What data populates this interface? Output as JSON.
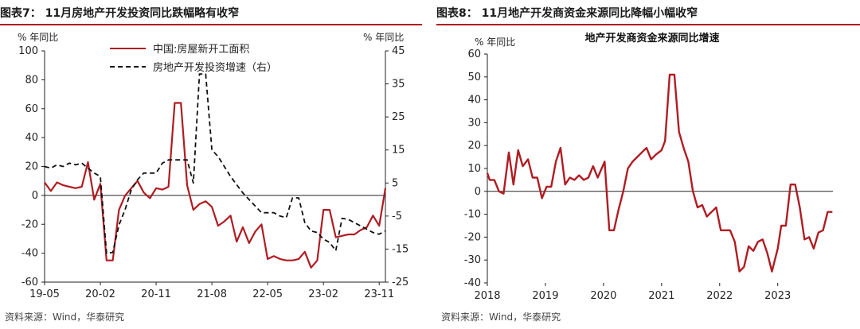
{
  "colors": {
    "red": "#b01c22",
    "black": "#111111"
  },
  "left_panel": {
    "header": "图表7： 11月房地产开发投资同比跌幅略有收窄",
    "unit_left": "% 年同比",
    "unit_right": "% 年同比",
    "source": "资料来源：Wind，华泰研究"
  },
  "right_panel": {
    "header": "图表8： 11月地产开发商资金来源同比降幅小幅收窄",
    "unit_left": "% 年同比",
    "source": "资料来源：Wind，华泰研究"
  },
  "chart_data": [
    {
      "type": "line",
      "title": "",
      "xlabel": "",
      "ylabel_left": "% 年同比",
      "ylabel_right": "% 年同比",
      "x_tick_labels": [
        "19-05",
        "20-02",
        "20-11",
        "21-08",
        "22-05",
        "23-02",
        "23-11"
      ],
      "x_tick_index": [
        0,
        9,
        18,
        27,
        36,
        45,
        54
      ],
      "ylim_left": [
        -60,
        100
      ],
      "yticks_left": [
        -60,
        -40,
        -20,
        0,
        20,
        40,
        60,
        80,
        100
      ],
      "ylim_right": [
        -25,
        45
      ],
      "yticks_right": [
        -25,
        -15,
        -5,
        5,
        15,
        25,
        35,
        45
      ],
      "legend_position": "top-center",
      "series": [
        {
          "name": "中国:房屋新开工面积",
          "axis": "left",
          "style": "solid",
          "color": "#b01c22",
          "values": [
            9,
            3,
            9,
            7,
            6,
            5,
            6,
            23,
            -3,
            8,
            -45,
            -45,
            -10,
            0,
            5,
            10,
            2,
            -2,
            5,
            4,
            6,
            64,
            64,
            7,
            -10,
            -6,
            -4,
            -8,
            -21,
            -18,
            -14,
            -32,
            -22,
            -33,
            -25,
            -20,
            -44,
            -42,
            -44,
            -45,
            -45,
            -44,
            -39,
            -50,
            -45,
            -10,
            -10,
            -29,
            -28,
            -27,
            -27,
            -24,
            -22,
            -14,
            -21,
            5
          ]
        },
        {
          "name": "房地产开发投资增速（右）",
          "axis": "right",
          "style": "dashed",
          "color": "#111111",
          "values": [
            10,
            9.5,
            10.5,
            10,
            11,
            10.5,
            11,
            9.5,
            8,
            7,
            -16.3,
            -16,
            -7.7,
            -3,
            3,
            6,
            8,
            8,
            8,
            11,
            12,
            12,
            12,
            12,
            5,
            38,
            38,
            15,
            13,
            10,
            7,
            4.5,
            2,
            0,
            -2,
            -4,
            -4,
            -4,
            -5,
            -5.5,
            0.5,
            0.5,
            -7,
            -9.5,
            -10,
            -12,
            -13,
            -15.5,
            -5.7,
            -6,
            -7,
            -8,
            -9,
            -10,
            -10.5,
            -9.5
          ]
        }
      ]
    },
    {
      "type": "line",
      "title": "地产开发商资金来源同比增速",
      "xlabel": "",
      "ylabel": "% 年同比",
      "x_tick_labels": [
        "2018",
        "2019",
        "2020",
        "2021",
        "2022",
        "2023"
      ],
      "xlim": [
        2018.0,
        2023.95
      ],
      "ylim": [
        -40,
        60
      ],
      "yticks": [
        -40,
        -30,
        -20,
        -10,
        0,
        10,
        20,
        30,
        40,
        50,
        60
      ],
      "legend_position": "none",
      "series": [
        {
          "color": "#b01c22",
          "x": [
            2018.0,
            2018.04,
            2018.12,
            2018.2,
            2018.28,
            2018.37,
            2018.45,
            2018.53,
            2018.61,
            2018.7,
            2018.78,
            2018.86,
            2018.94,
            2019.02,
            2019.1,
            2019.18,
            2019.26,
            2019.34,
            2019.42,
            2019.5,
            2019.58,
            2019.66,
            2019.74,
            2019.82,
            2019.9,
            2020.02,
            2020.1,
            2020.18,
            2020.26,
            2020.34,
            2020.42,
            2020.5,
            2020.58,
            2020.66,
            2020.74,
            2020.82,
            2020.9,
            2021.0,
            2021.06,
            2021.14,
            2021.22,
            2021.3,
            2021.38,
            2021.46,
            2021.54,
            2021.62,
            2021.7,
            2021.78,
            2021.86,
            2021.94,
            2022.02,
            2022.1,
            2022.18,
            2022.26,
            2022.34,
            2022.42,
            2022.5,
            2022.58,
            2022.66,
            2022.74,
            2022.82,
            2022.9,
            2023.0,
            2023.06,
            2023.14,
            2023.22,
            2023.3,
            2023.38,
            2023.46,
            2023.54,
            2023.62,
            2023.7,
            2023.78,
            2023.86,
            2023.94
          ],
          "values": [
            8,
            5,
            5,
            0,
            -1,
            17,
            3,
            18,
            11,
            14,
            6,
            6,
            -3,
            2,
            2,
            13,
            19,
            3,
            6,
            5,
            7,
            5,
            6,
            11,
            6,
            13,
            -17,
            -17,
            -8,
            0,
            10,
            13,
            15,
            17,
            19,
            14,
            16,
            18,
            22,
            51,
            51,
            26,
            19,
            13,
            0,
            -7,
            -6,
            -11,
            -9,
            -7,
            -17,
            -17,
            -17,
            -22,
            -35,
            -33,
            -24,
            -26,
            -22,
            -21,
            -27,
            -35,
            -25,
            -15,
            -15,
            3,
            3,
            -7,
            -21,
            -20,
            -25,
            -18,
            -17,
            -9,
            -9
          ]
        }
      ]
    }
  ]
}
